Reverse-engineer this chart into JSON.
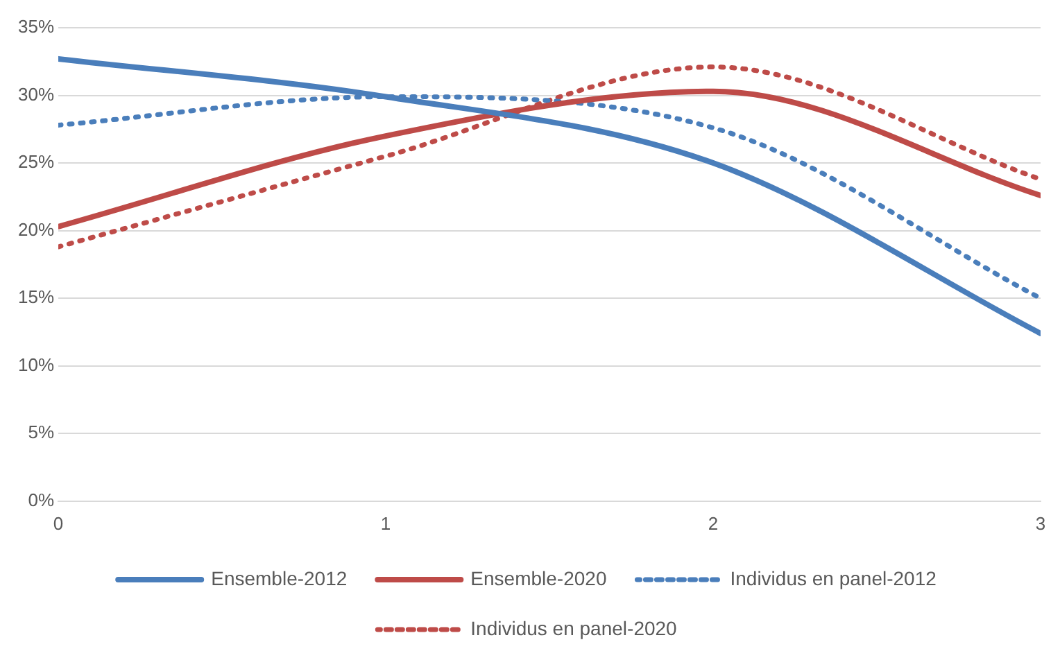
{
  "chart_data": {
    "type": "line",
    "x": [
      0,
      1,
      2,
      3
    ],
    "xlim": [
      0,
      3
    ],
    "xticks": [
      0,
      1,
      2,
      3
    ],
    "ylim": [
      0,
      35
    ],
    "yticks": [
      {
        "value": 0,
        "label": "0%"
      },
      {
        "value": 5,
        "label": "5%"
      },
      {
        "value": 10,
        "label": "10%"
      },
      {
        "value": 15,
        "label": "15%"
      },
      {
        "value": 20,
        "label": "20%"
      },
      {
        "value": 25,
        "label": "25%"
      },
      {
        "value": 30,
        "label": "30%"
      },
      {
        "value": 35,
        "label": "35%"
      }
    ],
    "grid": "y",
    "legend": "bottom",
    "marker": "none",
    "series": [
      {
        "name": "Ensemble-2012",
        "color": "#4a7ebb",
        "values": [
          32.7,
          29.9,
          25.0,
          12.4
        ],
        "line_style": "solid"
      },
      {
        "name": "Ensemble-2020",
        "color": "#be4b48",
        "values": [
          20.3,
          27.0,
          30.3,
          22.6
        ],
        "line_style": "solid"
      },
      {
        "name": "Individus en panel-2012",
        "color": "#4a7ebb",
        "values": [
          27.8,
          29.9,
          27.6,
          15.0
        ],
        "line_style": "dotted"
      },
      {
        "name": "Individus en panel-2020",
        "color": "#be4b48",
        "values": [
          18.8,
          25.5,
          32.1,
          23.8
        ],
        "line_style": "dotted"
      }
    ]
  }
}
